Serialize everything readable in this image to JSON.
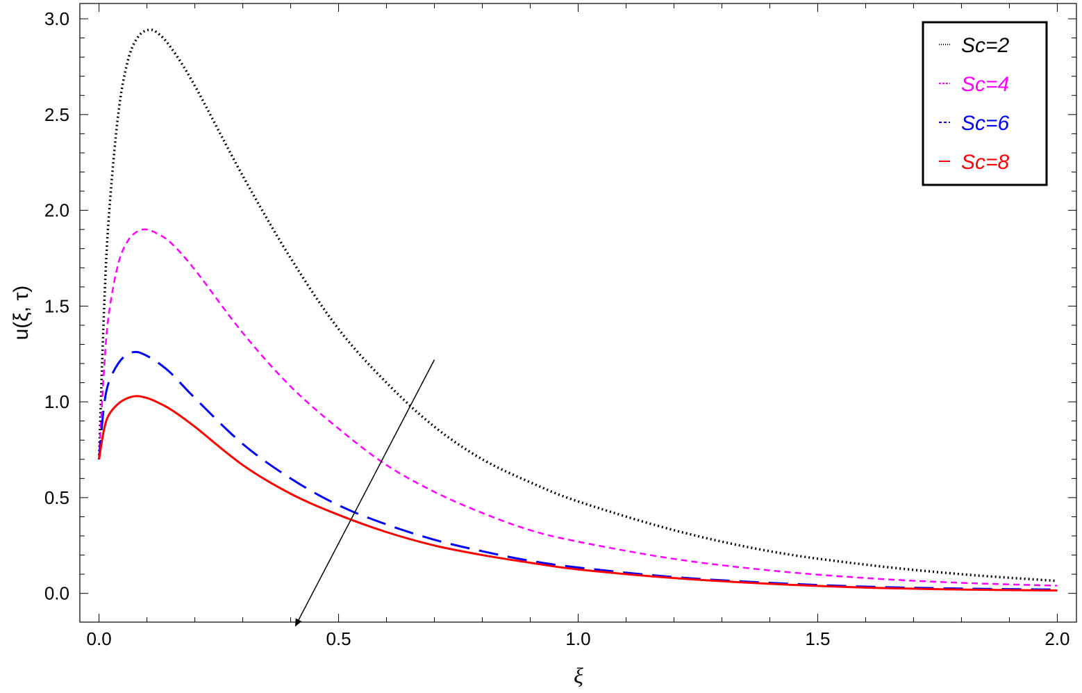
{
  "chart_data": {
    "type": "line",
    "xlabel": "ξ",
    "ylabel": "u(ξ, τ)",
    "xlim": [
      -0.04,
      2.04
    ],
    "ylim": [
      -0.15,
      3.08
    ],
    "x_ticks": [
      0.0,
      0.5,
      1.0,
      1.5,
      2.0
    ],
    "x_tick_labels": [
      "0.0",
      "0.5",
      "1.0",
      "1.5",
      "2.0"
    ],
    "y_ticks": [
      0.0,
      0.5,
      1.0,
      1.5,
      2.0,
      2.5,
      3.0
    ],
    "y_tick_labels": [
      "0.0",
      "0.5",
      "1.0",
      "1.5",
      "2.0",
      "2.5",
      "3.0"
    ],
    "grid": false,
    "legend_position": "top-right",
    "x": [
      0.0,
      0.01,
      0.02,
      0.04,
      0.06,
      0.08,
      0.1,
      0.12,
      0.15,
      0.2,
      0.3,
      0.4,
      0.5,
      0.6,
      0.7,
      0.8,
      0.9,
      1.0,
      1.2,
      1.4,
      1.6,
      1.8,
      2.0
    ],
    "series": [
      {
        "name": "Sc=2",
        "color": "#000000",
        "style": "dotted",
        "values": [
          0.7,
          1.45,
          1.95,
          2.5,
          2.78,
          2.9,
          2.94,
          2.93,
          2.85,
          2.65,
          2.18,
          1.75,
          1.38,
          1.1,
          0.87,
          0.7,
          0.58,
          0.48,
          0.33,
          0.22,
          0.15,
          0.1,
          0.065
        ]
      },
      {
        "name": "Sc=4",
        "color": "#ff00ff",
        "style": "dashed",
        "values": [
          0.7,
          1.15,
          1.45,
          1.72,
          1.84,
          1.89,
          1.9,
          1.88,
          1.83,
          1.69,
          1.36,
          1.08,
          0.86,
          0.67,
          0.53,
          0.42,
          0.33,
          0.27,
          0.18,
          0.12,
          0.08,
          0.055,
          0.04
        ]
      },
      {
        "name": "Sc=6",
        "color": "#0000ff",
        "style": "long-dashed",
        "values": [
          0.7,
          0.97,
          1.1,
          1.2,
          1.25,
          1.26,
          1.24,
          1.21,
          1.15,
          1.02,
          0.78,
          0.6,
          0.46,
          0.36,
          0.28,
          0.22,
          0.17,
          0.135,
          0.085,
          0.055,
          0.035,
          0.025,
          0.02
        ]
      },
      {
        "name": "Sc=8",
        "color": "#ff0000",
        "style": "solid",
        "values": [
          0.7,
          0.85,
          0.93,
          0.99,
          1.02,
          1.03,
          1.02,
          1.0,
          0.96,
          0.87,
          0.67,
          0.52,
          0.41,
          0.32,
          0.25,
          0.2,
          0.16,
          0.125,
          0.08,
          0.05,
          0.03,
          0.02,
          0.015
        ]
      }
    ],
    "annotations": [
      {
        "type": "arrow",
        "from": [
          0.7,
          1.22
        ],
        "to": [
          0.41,
          -0.17
        ]
      }
    ]
  }
}
